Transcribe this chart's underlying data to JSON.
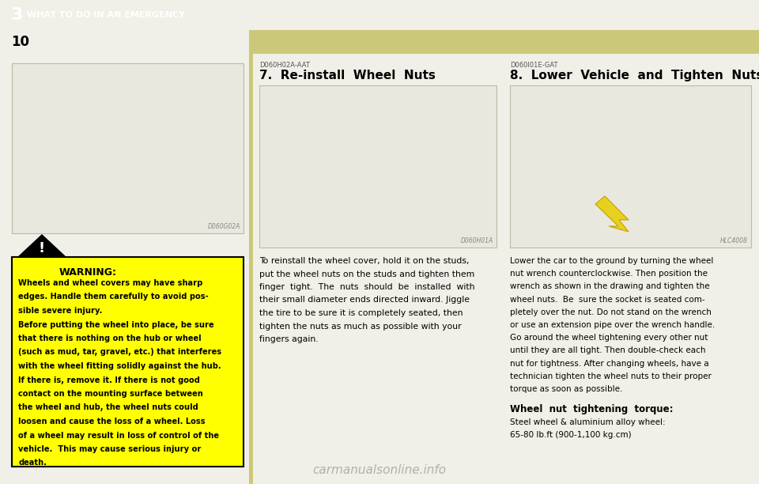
{
  "page_bg": "#f0efe8",
  "header_bg": "#ccc87a",
  "header_text_color": "#ffffff",
  "header_chapter": "3",
  "header_title": "WHAT TO DO IN AN EMERGENCY",
  "page_number": "10",
  "page_number_color": "#000000",
  "col1_image_caption": "D060G02A",
  "col1_warning_title": "WARNING:",
  "col1_warning_line1": "Wheels and wheel covers may have sharp",
  "col1_warning_line2": "edges. Handle them carefully to avoid pos-",
  "col1_warning_line3": "sible severe injury.",
  "col1_warning_line4": "Before putting the wheel into place, be sure",
  "col1_warning_line5": "that there is nothing on the hub or wheel",
  "col1_warning_line6": "(such as mud, tar, gravel, etc.) that interferes",
  "col1_warning_line7": "with the wheel fitting solidly against the hub.",
  "col1_warning_line8": "If there is, remove it. If there is not good",
  "col1_warning_line9": "contact on the mounting surface between",
  "col1_warning_line10": "the wheel and hub, the wheel nuts could",
  "col1_warning_line11": "loosen and cause the loss of a wheel. Loss",
  "col1_warning_line12": "of a wheel may result in loss of control of the",
  "col1_warning_line13": "vehicle.  This may cause serious injury or",
  "col1_warning_line14": "death.",
  "col1_warning_text": "Wheels and wheel covers may have sharp\nedges. Handle them carefully to avoid pos-\nsible severe injury.\nBefore putting the wheel into place, be sure\nthat there is nothing on the hub or wheel\n(such as mud, tar, gravel, etc.) that interferes\nwith the wheel fitting solidly against the hub.\nIf there is, remove it. If there is not good\ncontact on the mounting surface between\nthe wheel and hub, the wheel nuts could\nloosen and cause the loss of a wheel. Loss\nof a wheel may result in loss of control of the\nvehicle.  This may cause serious injury or\ndeath.",
  "col2_ref": "D060H02A-AAT",
  "col2_section": "7.  Re-install  Wheel  Nuts",
  "col2_image_caption": "D060H01A",
  "col2_body": "To reinstall the wheel cover, hold it on the studs,\nput the wheel nuts on the studs and tighten them\nfinger  tight.  The  nuts  should  be  installed  with\ntheir small diameter ends directed inward. Jiggle\nthe tire to be sure it is completely seated, then\ntighten the nuts as much as possible with your\nfingers again.",
  "col3_ref": "D060I01E-GAT",
  "col3_section": "8.  Lower  Vehicle  and  Tighten  Nuts",
  "col3_image_caption": "HLC4008",
  "col3_body": "Lower the car to the ground by turning the wheel\nnut wrench counterclockwise. Then position the\nwrench as shown in the drawing and tighten the\nwheel nuts.  Be  sure the socket is seated com-\npletely over the nut. Do not stand on the wrench\nor use an extension pipe over the wrench handle.\nGo around the wheel tightening every other nut\nuntil they are all tight. Then double-check each\nnut for tightness. After changing wheels, have a\ntechnician tighten the wheel nuts to their proper\ntorque as soon as possible.",
  "col3_torque_title": "Wheel  nut  tightening  torque:",
  "col3_torque_body": "Steel wheel & aluminium alloy wheel:\n65-80 lb.ft (900-1,100 kg.cm)",
  "warning_bg": "#ffff00",
  "warning_border": "#000000",
  "warning_text_color": "#000000",
  "body_text_color": "#000000",
  "section_title_color": "#000000",
  "ref_text_color": "#555555",
  "image_bg": "#e8e8de",
  "image_border": "#bbbbaa",
  "watermark_color": "#b0b0b0",
  "watermark_text": "carmanualsonline.info"
}
